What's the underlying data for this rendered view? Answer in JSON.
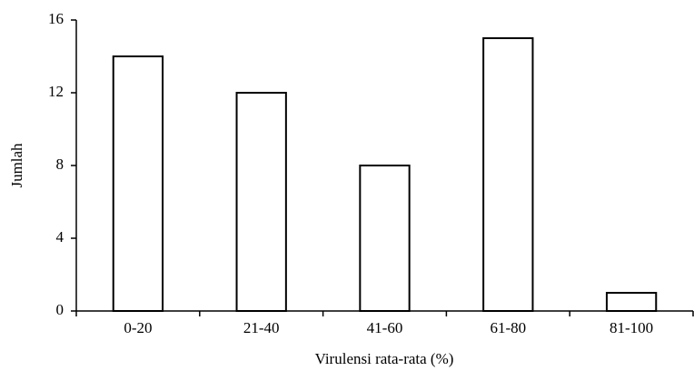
{
  "chart_data": {
    "type": "bar",
    "x_label": "Virulensi rata-rata (%)",
    "y_label": "Jumlah",
    "categories": [
      "0-20",
      "21-40",
      "41-60",
      "61-80",
      "81-100"
    ],
    "values": [
      14,
      12,
      8,
      15,
      1
    ],
    "color": "#ffffff",
    "ylim": [
      0,
      16
    ],
    "yticks": [
      0,
      4,
      8,
      12,
      16
    ],
    "grid": false
  }
}
